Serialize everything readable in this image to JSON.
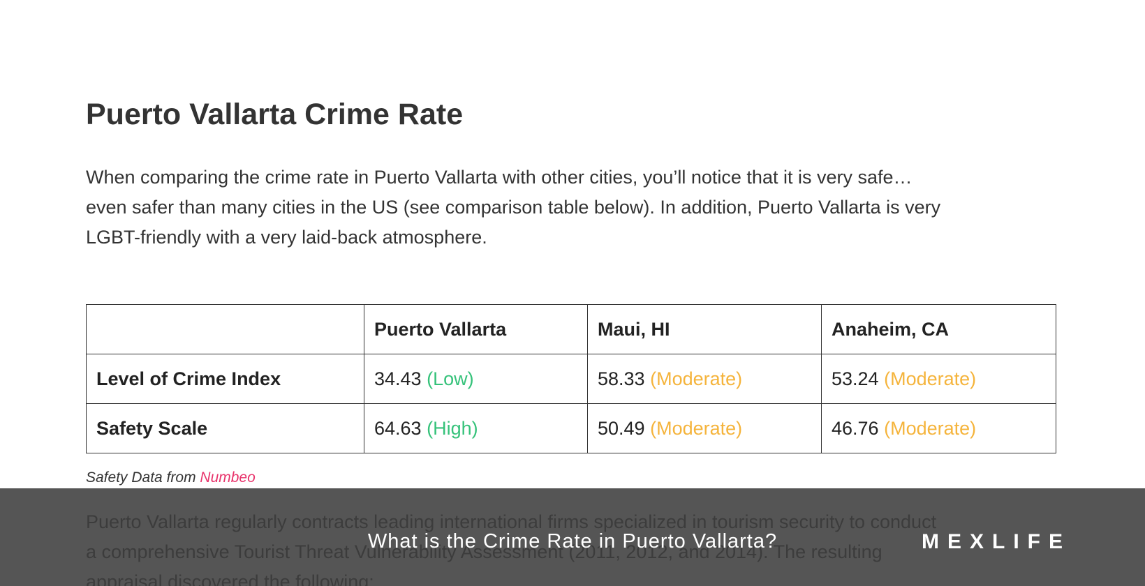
{
  "article": {
    "title": "Puerto Vallarta Crime Rate",
    "paragraph_lines": [
      "When comparing the crime rate in Puerto Vallarta with other cities, you’ll notice that it is very safe…",
      "even safer than many cities in the US (see comparison table below). In addition, Puerto Vallarta is very",
      "LGBT-friendly with a very laid-back atmosphere."
    ],
    "caption_prefix": "Safety Data from",
    "caption_link": "Numbeo",
    "next_paragraph_lines": [
      "Puerto Vallarta regularly contracts leading international firms specialized in tourism security to conduct",
      "a comprehensive Tourist Threat Vulnerability Assessment (2011, 2012, and 2014). The resulting",
      "appraisal discovered the following:"
    ]
  },
  "table": {
    "header": [
      "Puerto Vallarta",
      "Maui, HI",
      "Anaheim, CA"
    ],
    "rows": [
      {
        "label": "Level of Crime Index",
        "cells": [
          {
            "value": "34.43",
            "rating": "(Low)",
            "color": "#35c27a"
          },
          {
            "value": "58.33",
            "rating": "(Moderate)",
            "color": "#f5b43c"
          },
          {
            "value": "53.24",
            "rating": "(Moderate)",
            "color": "#f5b43c"
          }
        ]
      },
      {
        "label": "Safety Scale",
        "cells": [
          {
            "value": "64.63",
            "rating": "(High)",
            "color": "#35c27a"
          },
          {
            "value": "50.49",
            "rating": "(Moderate)",
            "color": "#f5b43c"
          },
          {
            "value": "46.76",
            "rating": "(Moderate)",
            "color": "#f5b43c"
          }
        ]
      }
    ]
  },
  "overlay": {
    "title": "What is the Crime Rate in Puerto Vallarta?",
    "logo": "MEXLIFE"
  }
}
